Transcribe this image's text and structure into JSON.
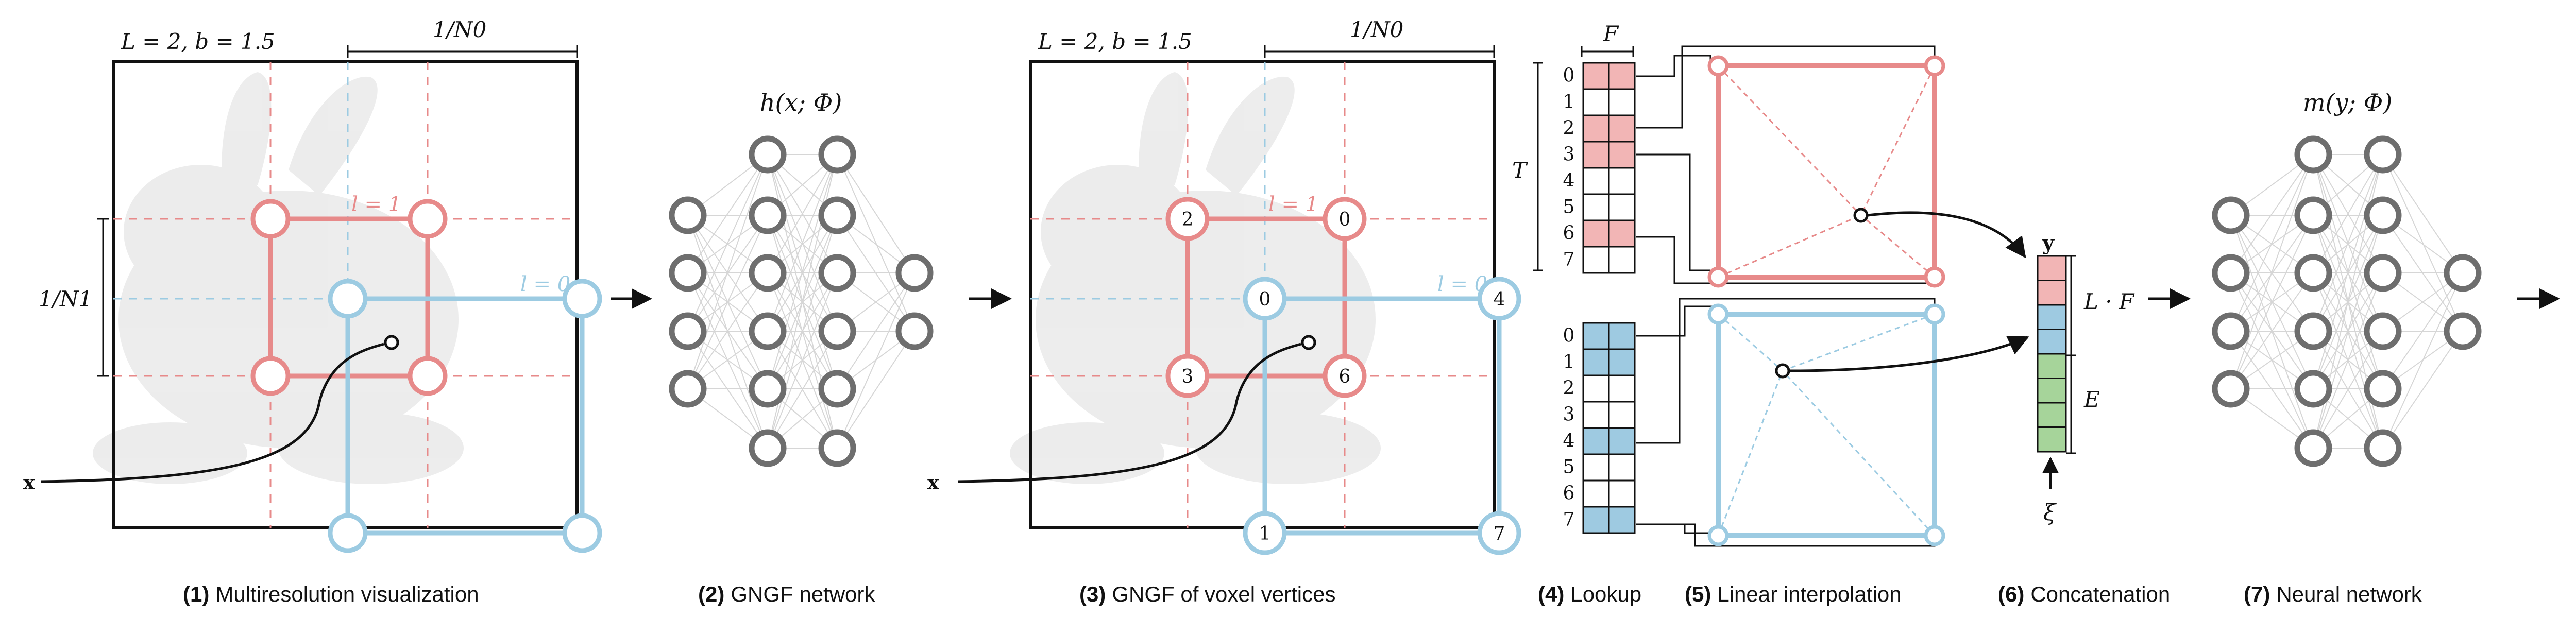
{
  "colors": {
    "red": "#e78a8a",
    "red_fill": "#f2b5b5",
    "blue": "#9ccbe2",
    "blue_fill": "#9ecae1",
    "green_fill": "#a6d49a",
    "neuron": "#6e6e6e",
    "bunny": "#e9e9e9"
  },
  "panel1": {
    "params": "L = 2,  b = 1.5",
    "top_scale": "1/N0",
    "left_scale": "1/N1",
    "level1": "l = 1",
    "level0": "l = 0",
    "x_label": "x"
  },
  "panel2": {
    "formula": "h(x; Φ)"
  },
  "panel3": {
    "params": "L = 2,  b = 1.5",
    "top_scale": "1/N0",
    "level1": "l = 1",
    "level0": "l = 0",
    "x_label": "x",
    "red_vertices": [
      "2",
      "0",
      "3",
      "6"
    ],
    "blue_vertices": [
      "0",
      "4",
      "1",
      "7"
    ]
  },
  "panel4": {
    "F_label": "F",
    "T_label": "T",
    "table_red_indices": [
      "0",
      "1",
      "2",
      "3",
      "4",
      "5",
      "6",
      "7"
    ],
    "table_blue_indices": [
      "0",
      "1",
      "2",
      "3",
      "4",
      "5",
      "6",
      "7"
    ]
  },
  "panel6": {
    "y_label": "y",
    "LF_label": "L · F",
    "E_label": "E",
    "xi_label": "ξ"
  },
  "panel7": {
    "formula": "m(y; Φ)"
  },
  "captions": [
    {
      "num": "(1)",
      "text": "Multiresolution visualization"
    },
    {
      "num": "(2)",
      "text": "GNGF network"
    },
    {
      "num": "(3)",
      "text": "GNGF of voxel vertices"
    },
    {
      "num": "(4)",
      "text": "Lookup"
    },
    {
      "num": "(5)",
      "text": "Linear interpolation"
    },
    {
      "num": "(6)",
      "text": "Concatenation"
    },
    {
      "num": "(7)",
      "text": "Neural network"
    }
  ]
}
